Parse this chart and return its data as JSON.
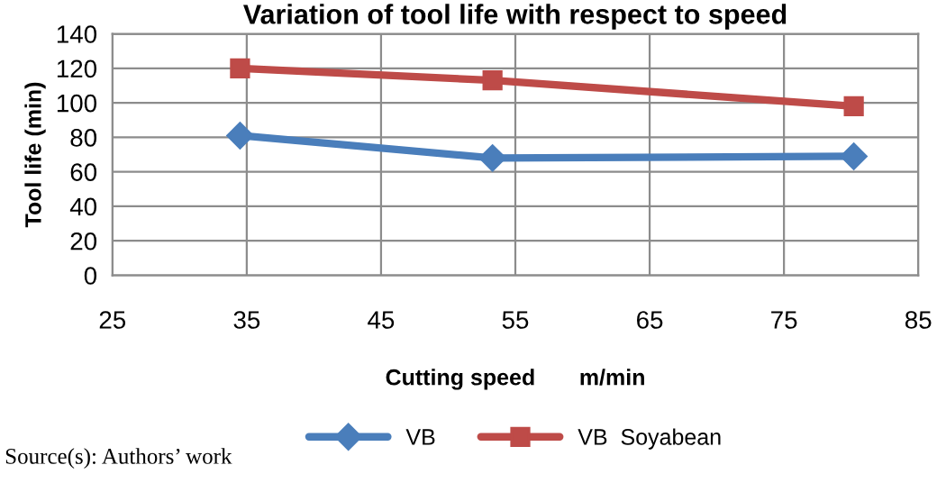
{
  "chart_data": {
    "type": "line",
    "title": "Variation of tool life with respect to speed",
    "xlabel": "Cutting speed       m/min",
    "ylabel": "Tool life (min)",
    "x": [
      34.5,
      53.3,
      80.2
    ],
    "series": [
      {
        "name": "VB",
        "color": "#4a7ebb",
        "values": [
          81,
          68,
          69
        ],
        "marker": "diamond"
      },
      {
        "name": "VB  Soyabean",
        "color": "#be4b48",
        "values": [
          120,
          113,
          98
        ],
        "marker": "square"
      }
    ],
    "xlim": [
      25,
      85
    ],
    "xticks": [
      25,
      35,
      45,
      55,
      65,
      75,
      85
    ],
    "ylim": [
      0,
      140
    ],
    "yticks": [
      0,
      20,
      40,
      60,
      80,
      100,
      120,
      140
    ],
    "grid": true,
    "legend": "bottom",
    "annotations": [
      "Source(s): Authors’ work"
    ]
  }
}
